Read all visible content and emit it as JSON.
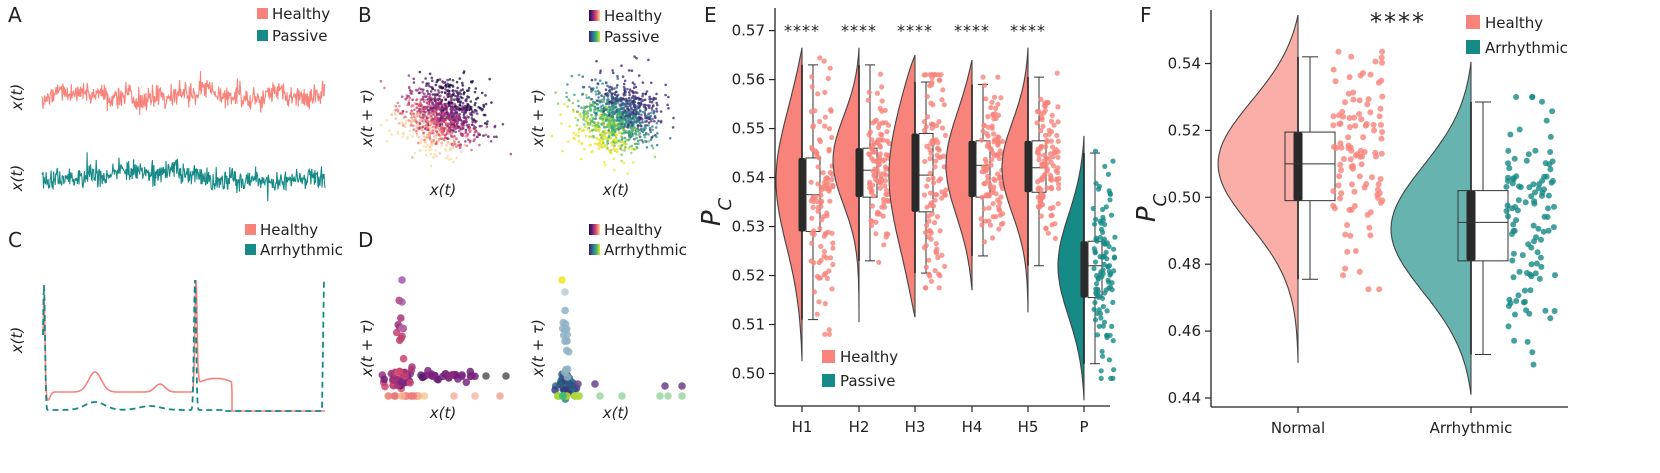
{
  "chart_data": [
    {
      "id": "A",
      "type": "line",
      "panel_label": "A",
      "ylabel": "x(t)",
      "series": [
        {
          "name": "Healthy",
          "color": "#F8837A"
        },
        {
          "name": "Passive",
          "color": "#168A86"
        }
      ]
    },
    {
      "id": "B",
      "type": "scatter",
      "panel_label": "B",
      "xlabel": "x(t)",
      "ylabel": "x(t + τ)",
      "series": [
        {
          "name": "Healthy",
          "colormap": "magma"
        },
        {
          "name": "Passive",
          "colormap": "viridis"
        }
      ]
    },
    {
      "id": "C",
      "type": "line",
      "panel_label": "C",
      "ylabel": "x(t)",
      "series": [
        {
          "name": "Healthy",
          "color": "#F8837A"
        },
        {
          "name": "Arrhythmic",
          "color": "#168A86"
        }
      ]
    },
    {
      "id": "D",
      "type": "scatter",
      "panel_label": "D",
      "xlabel": "x(t)",
      "ylabel": "x(t + τ)",
      "series": [
        {
          "name": "Healthy",
          "colormap": "magma"
        },
        {
          "name": "Arrhythmic",
          "colormap": "viridis"
        }
      ]
    },
    {
      "id": "E",
      "type": "violin",
      "panel_label": "E",
      "ylabel": "P_C",
      "ylim": [
        0.495,
        0.574
      ],
      "yticks": [
        "0.50",
        "0.51",
        "0.52",
        "0.53",
        "0.54",
        "0.55",
        "0.56",
        "0.57"
      ],
      "categories": [
        "H1",
        "H2",
        "H3",
        "H4",
        "H5",
        "P"
      ],
      "significance": [
        "****",
        "****",
        "****",
        "****",
        "****"
      ],
      "groups": [
        {
          "label": "H1",
          "q1": 0.529,
          "median": 0.5365,
          "q3": 0.544,
          "whisker_low": 0.511,
          "whisker_high": 0.563,
          "kde_low": 0.5025,
          "kde_high": 0.5665
        },
        {
          "label": "H2",
          "q1": 0.536,
          "median": 0.5415,
          "q3": 0.546,
          "whisker_low": 0.523,
          "whisker_high": 0.563,
          "kde_low": 0.5105,
          "kde_high": 0.5665
        },
        {
          "label": "H3",
          "q1": 0.533,
          "median": 0.5405,
          "q3": 0.549,
          "whisker_low": 0.5205,
          "whisker_high": 0.5595,
          "kde_low": 0.5115,
          "kde_high": 0.565
        },
        {
          "label": "H4",
          "q1": 0.536,
          "median": 0.5425,
          "q3": 0.5475,
          "whisker_low": 0.524,
          "whisker_high": 0.559,
          "kde_low": 0.517,
          "kde_high": 0.564
        },
        {
          "label": "H5",
          "q1": 0.537,
          "median": 0.542,
          "q3": 0.5475,
          "whisker_low": 0.522,
          "whisker_high": 0.5605,
          "kde_low": 0.5125,
          "kde_high": 0.5665
        },
        {
          "label": "P",
          "q1": 0.5155,
          "median": 0.522,
          "q3": 0.527,
          "whisker_low": 0.502,
          "whisker_high": 0.545,
          "kde_low": 0.4945,
          "kde_high": 0.5485
        }
      ],
      "legend": [
        {
          "name": "Healthy",
          "color": "#F8837A"
        },
        {
          "name": "Passive",
          "color": "#168A86"
        }
      ]
    },
    {
      "id": "F",
      "type": "violin",
      "panel_label": "F",
      "ylabel": "P_C",
      "ylim": [
        0.44,
        0.556
      ],
      "yticks": [
        "0.44",
        "0.46",
        "0.48",
        "0.50",
        "0.52",
        "0.54"
      ],
      "categories": [
        "Normal",
        "Arrhythmic"
      ],
      "significance": "****",
      "groups": [
        {
          "label": "Normal",
          "q1": 0.499,
          "median": 0.51,
          "q3": 0.5195,
          "whisker_low": 0.4755,
          "whisker_high": 0.542,
          "kde_low": 0.4505,
          "kde_high": 0.5545
        },
        {
          "label": "Arrhythmic",
          "q1": 0.481,
          "median": 0.4925,
          "q3": 0.502,
          "whisker_low": 0.453,
          "whisker_high": 0.5285,
          "kde_low": 0.441,
          "kde_high": 0.5405
        }
      ],
      "legend": [
        {
          "name": "Healthy",
          "color": "#F8837A"
        },
        {
          "name": "Arrhythmic",
          "color": "#168A86"
        }
      ]
    }
  ],
  "colors": {
    "healthy": "#F8837A",
    "passive": "#168A86",
    "axis": "#222222"
  }
}
